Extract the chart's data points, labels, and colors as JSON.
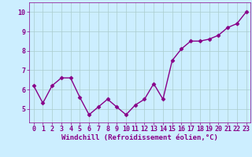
{
  "x": [
    0,
    1,
    2,
    3,
    4,
    5,
    6,
    7,
    8,
    9,
    10,
    11,
    12,
    13,
    14,
    15,
    16,
    17,
    18,
    19,
    20,
    21,
    22,
    23
  ],
  "y": [
    6.2,
    5.3,
    6.2,
    6.6,
    6.6,
    5.6,
    4.7,
    5.1,
    5.5,
    5.1,
    4.7,
    5.2,
    5.5,
    6.3,
    5.5,
    7.5,
    8.1,
    8.5,
    8.5,
    8.6,
    8.8,
    9.2,
    9.4,
    10.0
  ],
  "line_color": "#880088",
  "marker": "D",
  "marker_size": 2.5,
  "line_width": 1.0,
  "bg_color": "#cceeff",
  "grid_color": "#aacccc",
  "xlabel": "Windchill (Refroidissement éolien,°C)",
  "xlabel_fontsize": 6.5,
  "tick_fontsize": 6.0,
  "ylim": [
    4.3,
    10.5
  ],
  "xlim": [
    -0.5,
    23.5
  ],
  "yticks": [
    5,
    6,
    7,
    8,
    9,
    10
  ],
  "xticks": [
    0,
    1,
    2,
    3,
    4,
    5,
    6,
    7,
    8,
    9,
    10,
    11,
    12,
    13,
    14,
    15,
    16,
    17,
    18,
    19,
    20,
    21,
    22,
    23
  ]
}
